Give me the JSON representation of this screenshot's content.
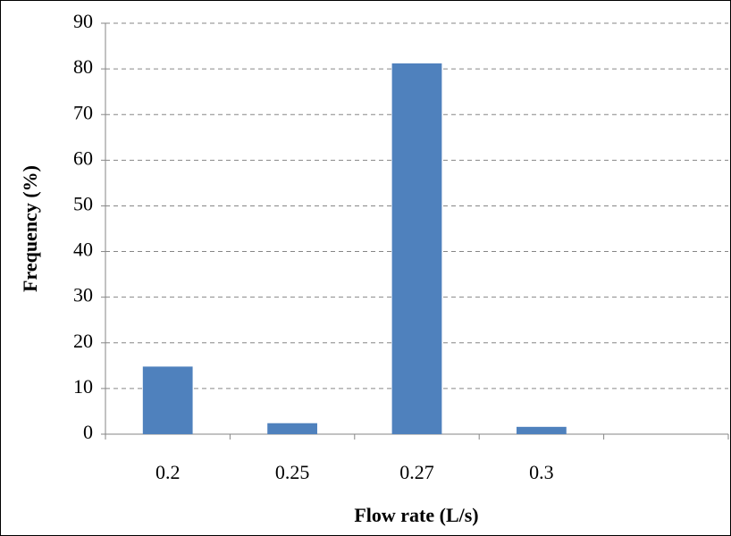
{
  "chart_data": {
    "type": "bar",
    "x_label": "Flow rate (L/s)",
    "y_label": "Frequency (%)",
    "categories": [
      "0.2",
      "0.25",
      "0.27",
      "0.3",
      null
    ],
    "values": [
      14.8,
      2.4,
      81.2,
      1.6,
      null
    ],
    "color": "#4f81bd",
    "ylim": [
      0,
      90
    ],
    "yticks": [
      0,
      10,
      20,
      30,
      40,
      50,
      60,
      70,
      80,
      90
    ],
    "grid": true
  }
}
